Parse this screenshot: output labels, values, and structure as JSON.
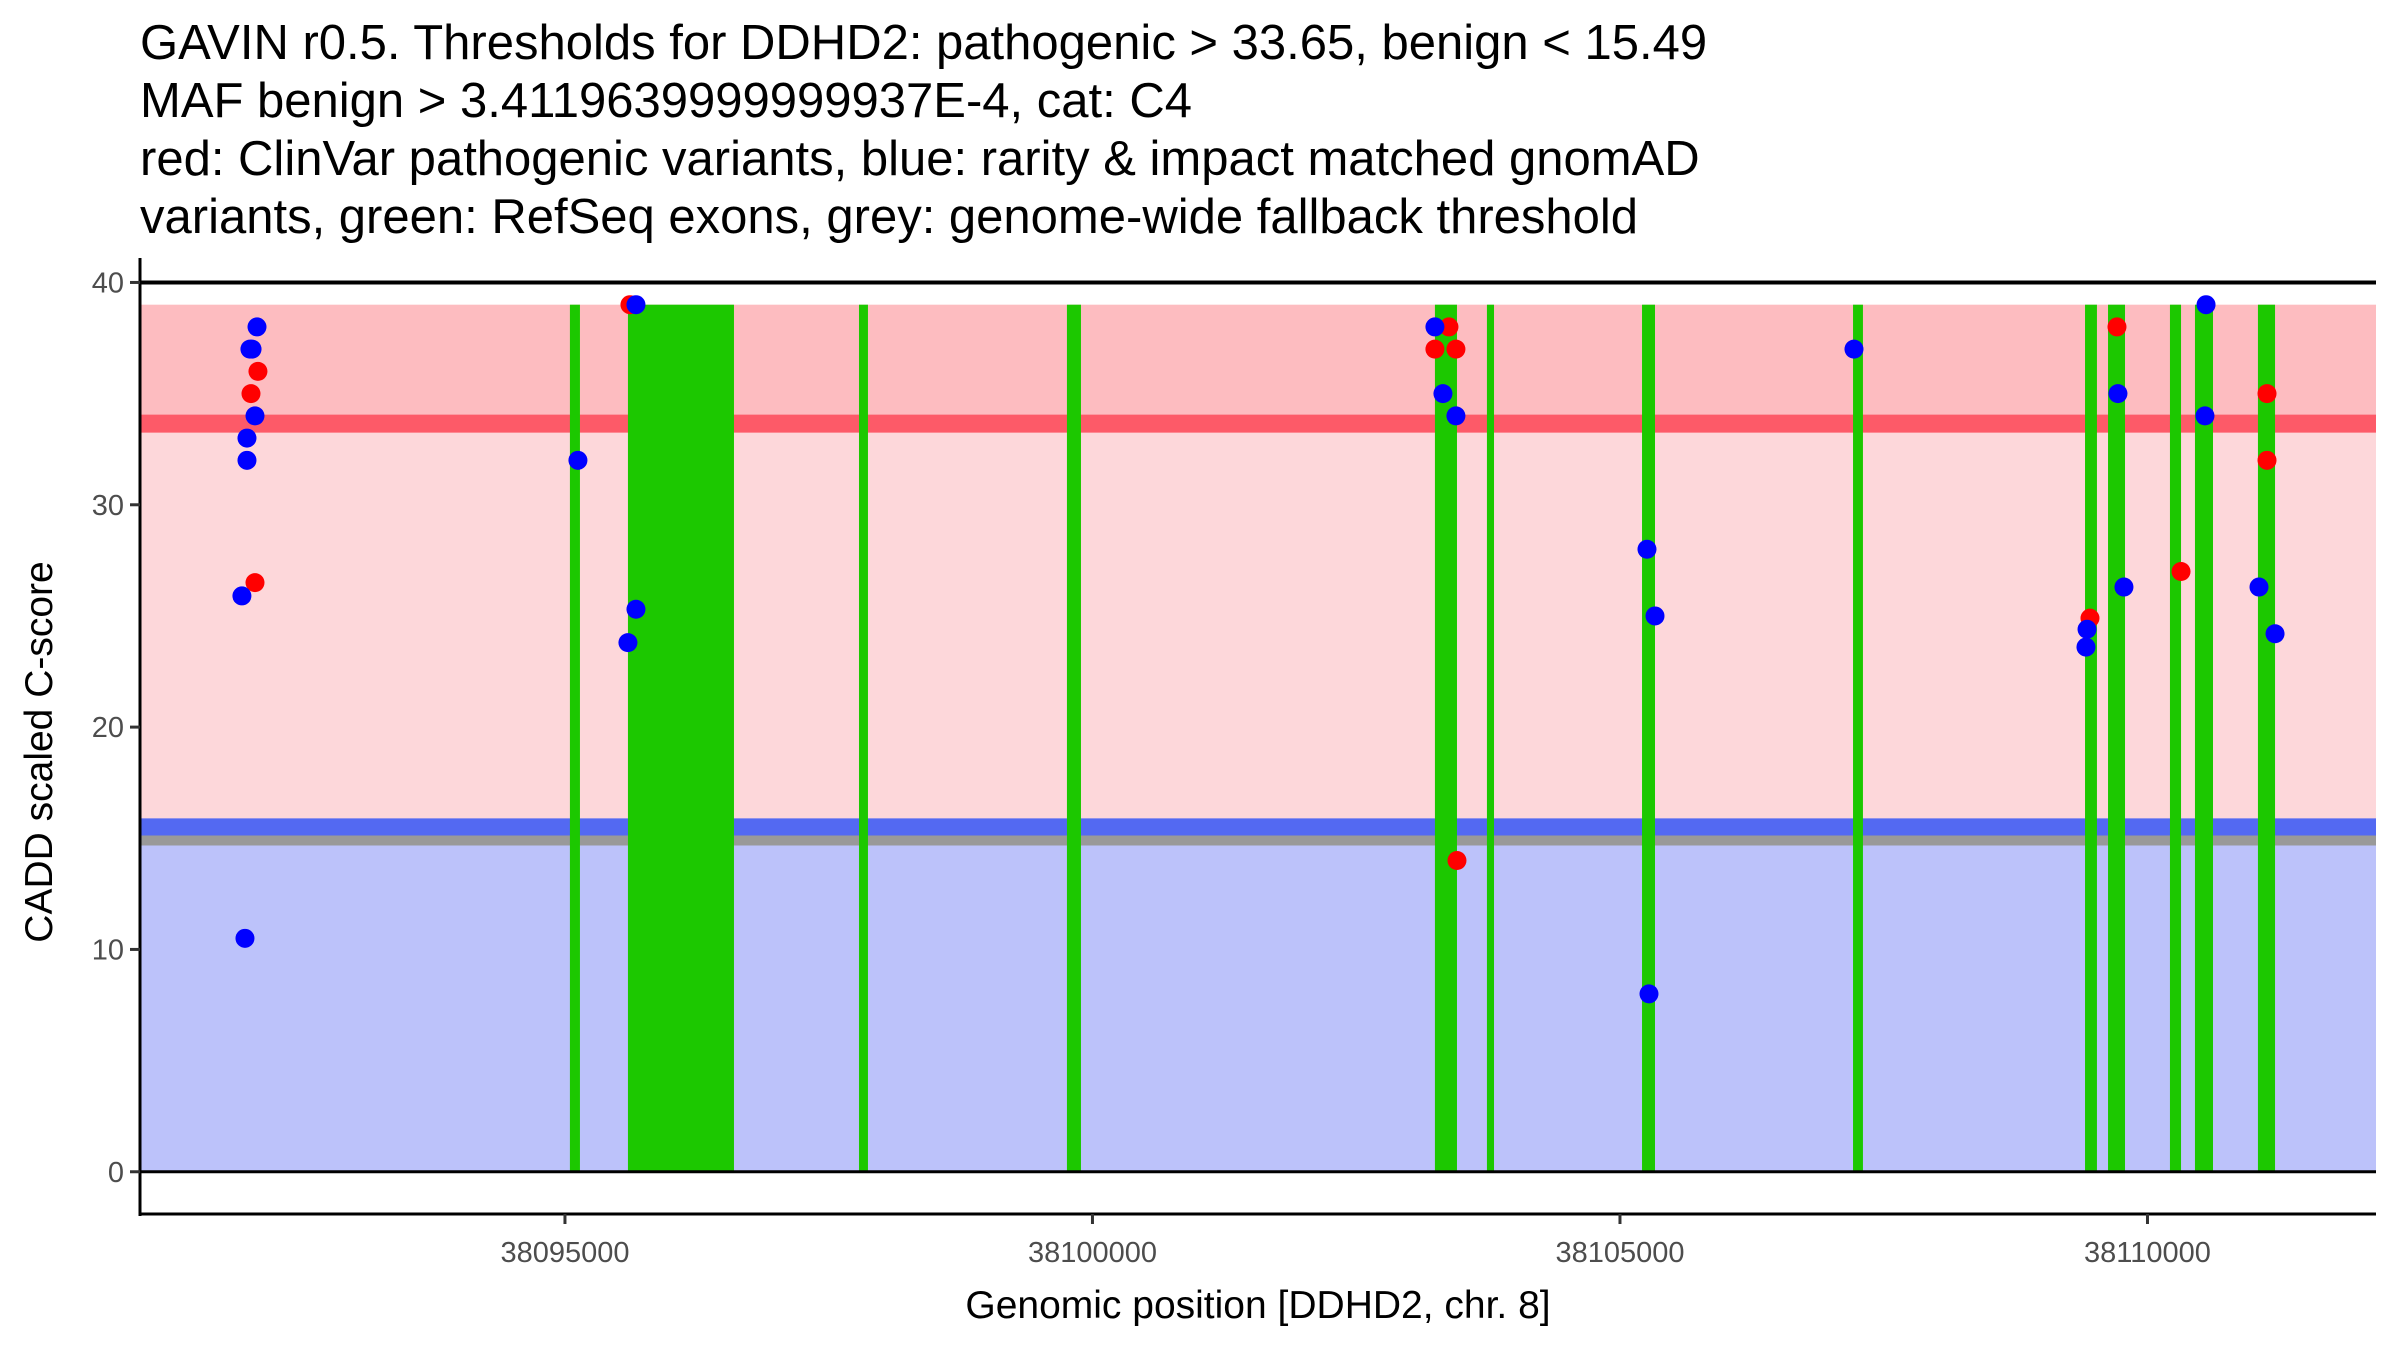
{
  "chart_data": {
    "type": "scatter",
    "title_lines": [
      "GAVIN r0.5. Thresholds for DDHD2: pathogenic > 33.65, benign < 15.49",
      "MAF benign > 3.4119639999999937E-4, cat: C4",
      "red: ClinVar pathogenic variants, blue: rarity & impact matched gnomAD",
      "variants, green: RefSeq exons, grey: genome-wide fallback threshold"
    ],
    "xlabel": "Genomic position [DDHD2, chr. 8]",
    "ylabel": "CADD scaled C-score",
    "xlim": [
      38090972,
      38112166
    ],
    "ylim": [
      -1.9,
      41.1
    ],
    "x_ticks": [
      38095000,
      38100000,
      38105000,
      38110000
    ],
    "x_tick_labels": [
      "38095000",
      "38100000",
      "38105000",
      "38110000"
    ],
    "y_ticks": [
      0,
      10,
      20,
      30,
      40
    ],
    "y_tick_labels": [
      "0",
      "10",
      "20",
      "30",
      "40"
    ],
    "grid": false,
    "legend": "none",
    "thresholds": {
      "pathogenic": 33.65,
      "benign": 15.49,
      "genome_wide_fallback": 14.9,
      "pathogenic_region": [
        15.49,
        39
      ],
      "benign_region": [
        0,
        15.49
      ],
      "band_top": 39
    },
    "colors": {
      "pathogenic_region_upper": "#fdbcc0",
      "pathogenic_region_lower": "#fdd7da",
      "pathogenic_line": "#fd5a68",
      "benign_region": "#bcc2fa",
      "benign_line": "#5369f2",
      "fallback_line": "#999999",
      "exon": "#1cc800",
      "clinvar": "#ff0000",
      "gnomad": "#0000ff"
    },
    "exons": [
      [
        38095047,
        38095142
      ],
      [
        38095597,
        38096602
      ],
      [
        38097787,
        38097872
      ],
      [
        38099758,
        38099891
      ],
      [
        38103246,
        38103455
      ],
      [
        38103739,
        38103806
      ],
      [
        38105209,
        38105332
      ],
      [
        38107209,
        38107303
      ],
      [
        38109408,
        38109521
      ],
      [
        38109626,
        38109787
      ],
      [
        38110213,
        38110318
      ],
      [
        38110450,
        38110621
      ],
      [
        38111047,
        38111209
      ]
    ],
    "series": [
      {
        "name": "ClinVar pathogenic variants",
        "color": "red",
        "points": [
          [
            38092090,
            36.0
          ],
          [
            38092024,
            35.0
          ],
          [
            38092062,
            26.5
          ],
          [
            38095616,
            39.0
          ],
          [
            38103379,
            38.0
          ],
          [
            38103246,
            37.0
          ],
          [
            38103445,
            37.0
          ],
          [
            38103455,
            14.0
          ],
          [
            38109711,
            38.0
          ],
          [
            38110318,
            27.0
          ],
          [
            38109455,
            24.9
          ],
          [
            38111133,
            35.0
          ],
          [
            38111133,
            32.0
          ]
        ]
      },
      {
        "name": "gnomAD rarity & impact matched variants",
        "color": "blue",
        "points": [
          [
            38092081,
            38.0
          ],
          [
            38092014,
            37.0
          ],
          [
            38092034,
            37.0
          ],
          [
            38092062,
            34.0
          ],
          [
            38091986,
            33.0
          ],
          [
            38091986,
            32.0
          ],
          [
            38091938,
            25.9
          ],
          [
            38091967,
            10.5
          ],
          [
            38095123,
            32.0
          ],
          [
            38095673,
            39.0
          ],
          [
            38095673,
            25.3
          ],
          [
            38095597,
            23.8
          ],
          [
            38103246,
            38.0
          ],
          [
            38103322,
            35.0
          ],
          [
            38103445,
            34.0
          ],
          [
            38105256,
            28.0
          ],
          [
            38105332,
            25.0
          ],
          [
            38105275,
            8.0
          ],
          [
            38107218,
            37.0
          ],
          [
            38109720,
            35.0
          ],
          [
            38109777,
            26.3
          ],
          [
            38109427,
            24.4
          ],
          [
            38109417,
            23.6
          ],
          [
            38110555,
            39.0
          ],
          [
            38110545,
            34.0
          ],
          [
            38111057,
            26.3
          ],
          [
            38111209,
            24.2
          ]
        ]
      }
    ]
  }
}
